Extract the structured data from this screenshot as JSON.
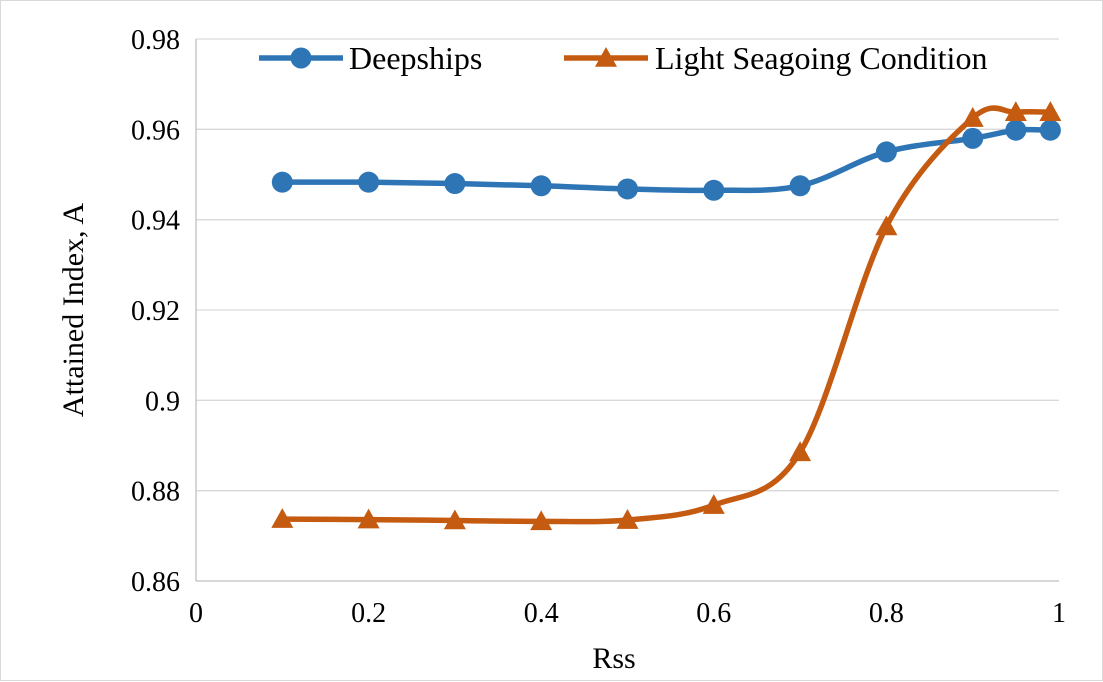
{
  "chart_data": {
    "type": "line",
    "title": "",
    "xlabel": "Rss",
    "ylabel": "Attained Index, A",
    "xlim": [
      0,
      1
    ],
    "ylim": [
      0.86,
      0.98
    ],
    "x_ticks": [
      "0",
      "0.2",
      "0.4",
      "0.6",
      "0.8",
      "1"
    ],
    "x_tick_values": [
      0,
      0.2,
      0.4,
      0.6,
      0.8,
      1
    ],
    "y_ticks": [
      "0.86",
      "0.88",
      "0.9",
      "0.92",
      "0.94",
      "0.96",
      "0.98"
    ],
    "y_tick_values": [
      0.86,
      0.88,
      0.9,
      0.92,
      0.94,
      0.96,
      0.98
    ],
    "grid": "horizontal",
    "legend_position": "top",
    "series": [
      {
        "name": "Deepships",
        "color": "#2E75B6",
        "marker": "circle",
        "x": [
          0.1,
          0.2,
          0.3,
          0.4,
          0.5,
          0.6,
          0.7,
          0.8,
          0.9,
          0.95,
          0.99
        ],
        "y": [
          0.9483,
          0.9483,
          0.948,
          0.9475,
          0.9468,
          0.9465,
          0.9475,
          0.955,
          0.958,
          0.9598,
          0.9598
        ]
      },
      {
        "name": "Light Seagoing Condition",
        "color": "#C55A11",
        "marker": "triangle",
        "x": [
          0.1,
          0.2,
          0.3,
          0.4,
          0.5,
          0.6,
          0.7,
          0.8,
          0.9,
          0.95,
          0.99
        ],
        "y": [
          0.8737,
          0.8736,
          0.8734,
          0.8732,
          0.8735,
          0.8768,
          0.8885,
          0.9385,
          0.9625,
          0.9638,
          0.9638
        ]
      }
    ]
  }
}
